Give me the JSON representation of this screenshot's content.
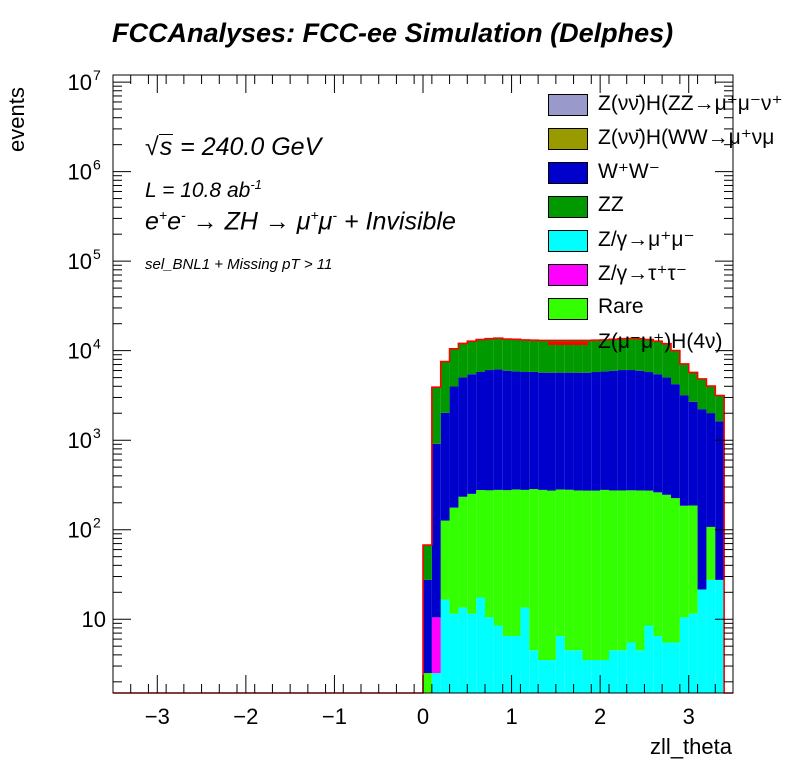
{
  "title": "FCCAnalyses: FCC-ee Simulation (Delphes)",
  "annotations": {
    "sqrt_s_symbol": "√",
    "sqrt_s_var": "s",
    "sqrt_s_value": " = 240.0 GeV",
    "lumi": "L = 10.8 ab",
    "lumi_exp": "-1",
    "process_a": "e",
    "process_b": "e",
    "process_c": " → ZH → μ",
    "process_d": "μ",
    "process_e": " + Invisible",
    "selection": "sel_BNL1 + Missing pT > 11"
  },
  "legend": [
    {
      "label": "Z(νν̄)H(ZZ→μ⁺μ⁻ν⁺",
      "color": "#9999cc",
      "kind": "fill"
    },
    {
      "label": "Z(νν̄)H(WW→μ⁺νμ",
      "color": "#999900",
      "kind": "fill"
    },
    {
      "label": "W⁺W⁻",
      "color": "#0000cc",
      "kind": "fill"
    },
    {
      "label": "ZZ",
      "color": "#009900",
      "kind": "fill"
    },
    {
      "label": "Z/γ→μ⁺μ⁻",
      "color": "#00ffff",
      "kind": "fill"
    },
    {
      "label": "Z/γ→τ⁺τ⁻",
      "color": "#ff00ff",
      "kind": "fill"
    },
    {
      "label": "Rare",
      "color": "#33ff00",
      "kind": "fill"
    },
    {
      "label": "Z(μ⁻μ⁺)H(4ν)",
      "color": "#ff0000",
      "kind": "line"
    }
  ],
  "chart_data": {
    "type": "bar",
    "stacked": true,
    "log_y": true,
    "xlabel": "zll_theta",
    "ylabel": "events",
    "xlim": [
      -3.5,
      3.5
    ],
    "ylim": [
      1.5,
      12000000
    ],
    "x_ticks": [
      -3,
      -2,
      -1,
      0,
      1,
      2,
      3
    ],
    "x_tick_labels": [
      "−3",
      "−2",
      "−1",
      "0",
      "1",
      "2",
      "3"
    ],
    "y_ticks": [
      {
        "value": 10,
        "base": "10",
        "exp": ""
      },
      {
        "value": 100,
        "base": "10",
        "exp": "2"
      },
      {
        "value": 1000,
        "base": "10",
        "exp": "3"
      },
      {
        "value": 10000,
        "base": "10",
        "exp": "4"
      },
      {
        "value": 100000,
        "base": "10",
        "exp": "5"
      },
      {
        "value": 1000000,
        "base": "10",
        "exp": "6"
      },
      {
        "value": 10000000,
        "base": "10",
        "exp": "7"
      }
    ],
    "bin_edges_start": 0.0,
    "bin_width": 0.1,
    "series": [
      {
        "name": "Z/γ→μ⁺μ⁻",
        "color": "#00ffff",
        "values": [
          0,
          1,
          15,
          10,
          12,
          10,
          16,
          9,
          7,
          5,
          5,
          12,
          3,
          2,
          2,
          5,
          3,
          3,
          2,
          2,
          2,
          3,
          3,
          4,
          3,
          7,
          5,
          4,
          4,
          9,
          10,
          20,
          26,
          26,
          0
        ]
      },
      {
        "name": "Z/γ→τ⁺τ⁻",
        "color": "#ff00ff",
        "values": [
          0,
          8,
          0,
          0,
          0,
          0,
          0,
          0,
          0,
          0,
          0,
          0,
          0,
          0,
          0,
          0,
          0,
          0,
          0,
          0,
          0,
          0,
          0,
          0,
          0,
          0,
          0,
          0,
          0,
          0,
          0,
          0,
          0,
          0,
          0
        ]
      },
      {
        "name": "Rare",
        "color": "#33ff00",
        "values": [
          1,
          0,
          110,
          165,
          220,
          240,
          260,
          265,
          270,
          270,
          275,
          265,
          280,
          275,
          270,
          275,
          275,
          270,
          270,
          270,
          275,
          270,
          270,
          270,
          270,
          265,
          255,
          240,
          220,
          175,
          175,
          0,
          80,
          0,
          0
        ]
      },
      {
        "name": "W⁺W⁻",
        "color": "#0000cc",
        "values": [
          25,
          900,
          1900,
          3800,
          4800,
          5200,
          5500,
          5800,
          5900,
          5700,
          5600,
          5500,
          5500,
          5400,
          5400,
          5400,
          5400,
          5400,
          5400,
          5500,
          5600,
          5700,
          5800,
          5800,
          5700,
          5500,
          5200,
          4800,
          4000,
          3000,
          2500,
          2200,
          1900,
          1600,
          0
        ]
      },
      {
        "name": "ZZ",
        "color": "#009900",
        "values": [
          40,
          3000,
          5500,
          6500,
          7000,
          7300,
          7500,
          7500,
          7600,
          7500,
          7500,
          7400,
          7300,
          7300,
          7300,
          7300,
          7300,
          7300,
          7300,
          7300,
          7300,
          7400,
          7500,
          7600,
          7600,
          7500,
          7300,
          6900,
          5800,
          3900,
          3000,
          2600,
          2000,
          1500,
          0
        ]
      },
      {
        "name": "Z(νν̄)H(WW→μ⁺νμ",
        "color": "#999900",
        "values": [
          0,
          0,
          10,
          10,
          10,
          10,
          10,
          10,
          10,
          10,
          10,
          10,
          10,
          10,
          10,
          10,
          10,
          10,
          10,
          10,
          10,
          10,
          10,
          10,
          10,
          10,
          10,
          10,
          10,
          10,
          10,
          10,
          10,
          10,
          0
        ]
      },
      {
        "name": "Z(νν̄)H(ZZ→μ⁺μ⁻ν⁺",
        "color": "#9999cc",
        "values": [
          0,
          0,
          10,
          10,
          10,
          10,
          10,
          10,
          10,
          10,
          10,
          10,
          10,
          10,
          10,
          10,
          10,
          10,
          10,
          10,
          10,
          10,
          10,
          10,
          10,
          10,
          10,
          10,
          10,
          10,
          10,
          10,
          10,
          10,
          0
        ]
      }
    ],
    "overlay_line": {
      "name": "Z(μ⁻μ⁺)H(4ν)",
      "color": "#ff0000",
      "x_start": -3.5,
      "x_end": 3.5,
      "y_outside": 1.5
    }
  }
}
